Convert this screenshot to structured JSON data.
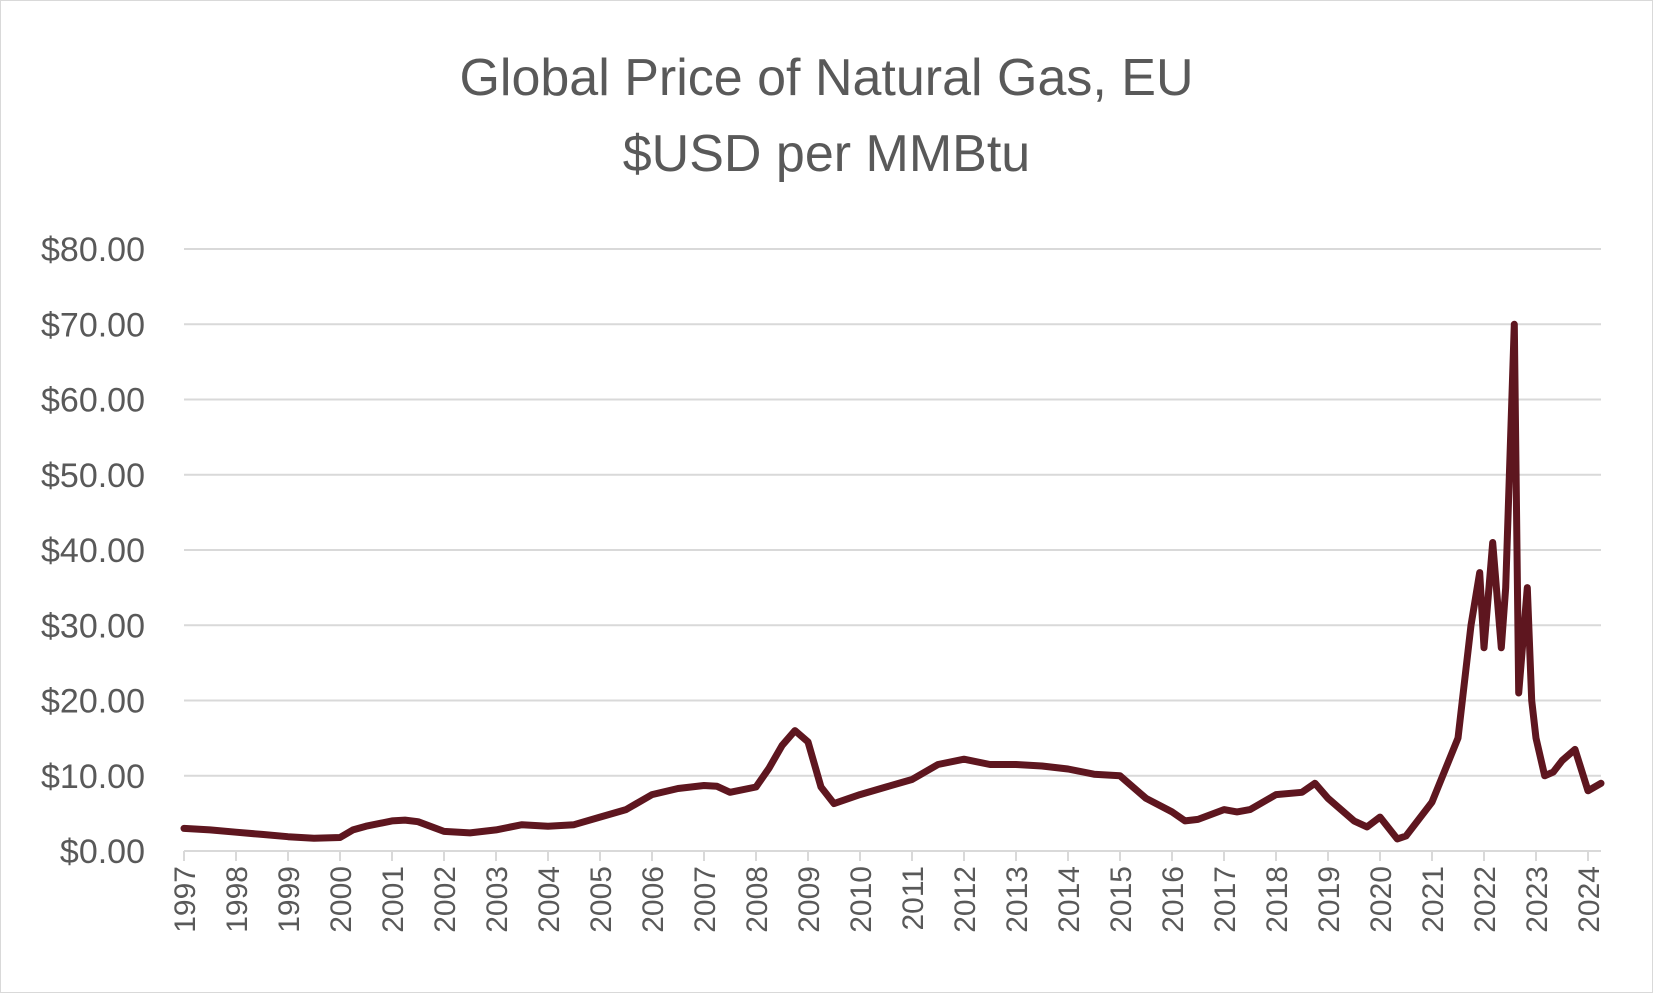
{
  "chart_data": {
    "type": "line",
    "title_line1": "Global Price of Natural Gas, EU",
    "title_line2": "$USD per MMBtu",
    "xlabel": "",
    "ylabel": "",
    "ylim": [
      0,
      80
    ],
    "xlim": [
      "1997-01",
      "2024-04"
    ],
    "y_ticks": [
      "$0.00",
      "$10.00",
      "$20.00",
      "$30.00",
      "$40.00",
      "$50.00",
      "$60.00",
      "$70.00",
      "$80.00"
    ],
    "x_ticks": [
      "1997",
      "1998",
      "1999",
      "2000",
      "2001",
      "2002",
      "2003",
      "2004",
      "2005",
      "2006",
      "2007",
      "2008",
      "2009",
      "2010",
      "2011",
      "2012",
      "2013",
      "2014",
      "2015",
      "2016",
      "2017",
      "2018",
      "2019",
      "2020",
      "2021",
      "2022",
      "2023",
      "2024"
    ],
    "grid": true,
    "legend": "none",
    "colors": {
      "line": "#5e161f",
      "grid": "#d9d9d9",
      "text": "#595959"
    },
    "series": [
      {
        "x": [
          "1997-01",
          "1997-07",
          "1998-01",
          "1998-07",
          "1999-01",
          "1999-07",
          "2000-01",
          "2000-04",
          "2000-07",
          "2001-01",
          "2001-04",
          "2001-07",
          "2002-01",
          "2002-07",
          "2003-01",
          "2003-07",
          "2004-01",
          "2004-07",
          "2005-01",
          "2005-07",
          "2006-01",
          "2006-07",
          "2007-01",
          "2007-04",
          "2007-07",
          "2008-01",
          "2008-04",
          "2008-07",
          "2008-10",
          "2009-01",
          "2009-04",
          "2009-07",
          "2010-01",
          "2010-07",
          "2011-01",
          "2011-07",
          "2012-01",
          "2012-07",
          "2013-01",
          "2013-07",
          "2014-01",
          "2014-07",
          "2015-01",
          "2015-07",
          "2016-01",
          "2016-04",
          "2016-07",
          "2017-01",
          "2017-04",
          "2017-07",
          "2018-01",
          "2018-07",
          "2018-10",
          "2019-01",
          "2019-07",
          "2019-10",
          "2020-01",
          "2020-05",
          "2020-07",
          "2021-01",
          "2021-07",
          "2021-10",
          "2021-12",
          "2022-01",
          "2022-03",
          "2022-05",
          "2022-06",
          "2022-08",
          "2022-09",
          "2022-11",
          "2022-12",
          "2023-01",
          "2023-03",
          "2023-05",
          "2023-07",
          "2023-10",
          "2024-01",
          "2024-04"
        ],
        "y": [
          3.0,
          2.8,
          2.5,
          2.2,
          1.9,
          1.7,
          1.8,
          2.8,
          3.3,
          4.0,
          4.1,
          3.9,
          2.6,
          2.4,
          2.8,
          3.5,
          3.3,
          3.5,
          4.5,
          5.5,
          7.5,
          8.3,
          8.7,
          8.6,
          7.8,
          8.5,
          11.0,
          14.0,
          16.0,
          14.5,
          8.5,
          6.3,
          7.5,
          8.5,
          9.5,
          11.5,
          12.2,
          11.5,
          11.5,
          11.3,
          10.9,
          10.2,
          10.0,
          7.0,
          5.2,
          4.0,
          4.2,
          5.5,
          5.2,
          5.5,
          7.5,
          7.8,
          9.0,
          7.0,
          4.0,
          3.2,
          4.5,
          1.6,
          2.0,
          6.5,
          15.0,
          30.0,
          37.0,
          27.0,
          41.0,
          27.0,
          35.0,
          70.0,
          21.0,
          35.0,
          20.0,
          15.0,
          10.0,
          10.5,
          12.0,
          13.5,
          8.0,
          9.0
        ]
      }
    ]
  }
}
